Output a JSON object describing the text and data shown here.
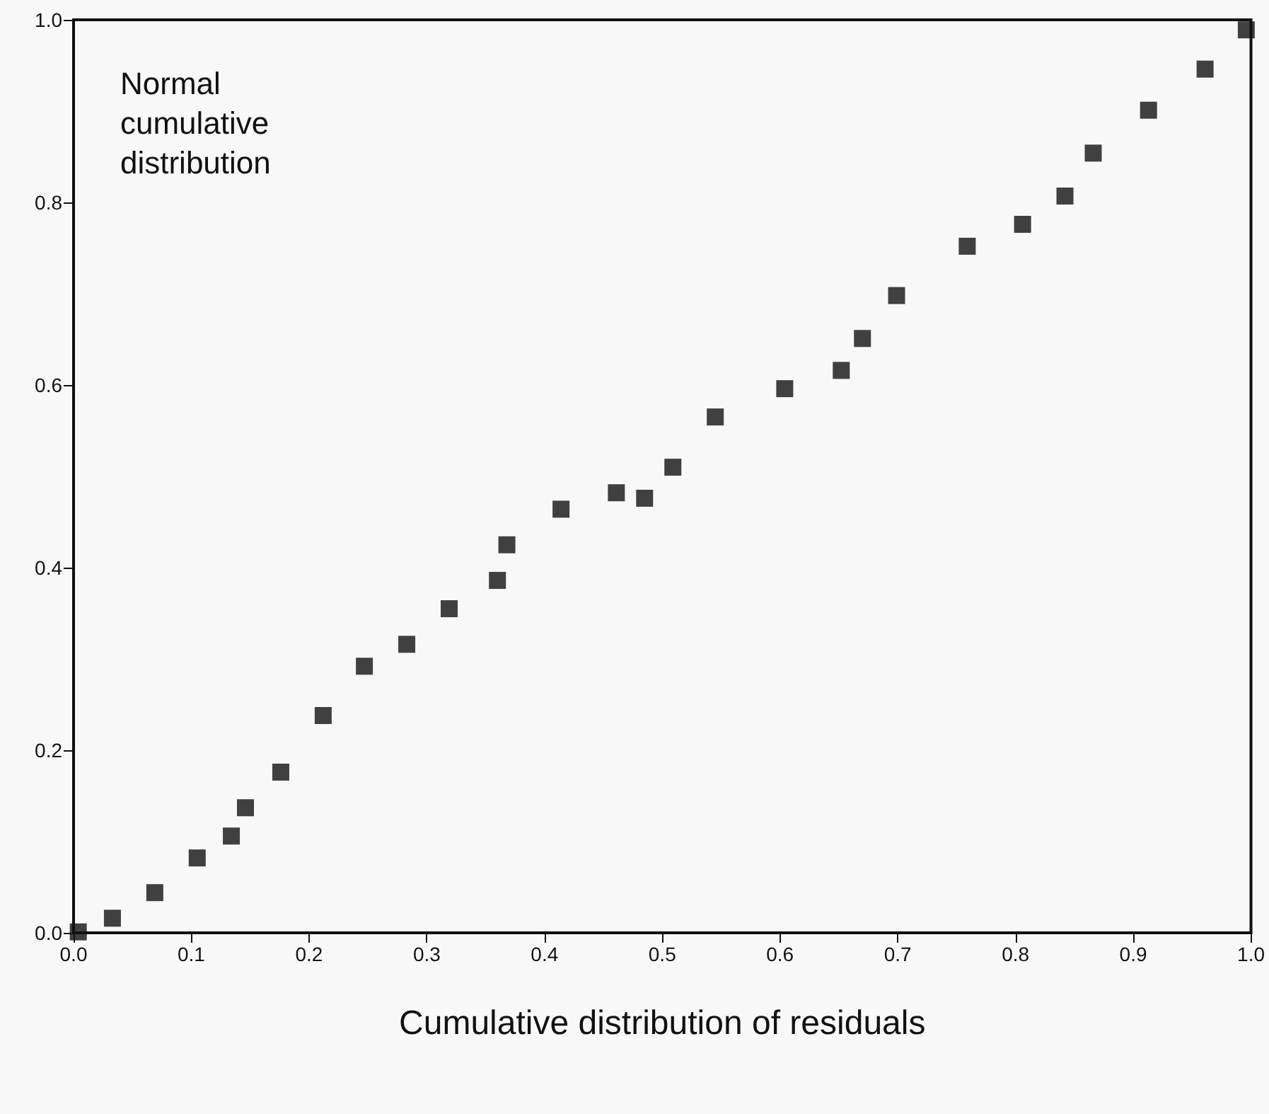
{
  "chart_data": {
    "type": "scatter",
    "xlabel": "Cumulative distribution of residuals",
    "ylabel": "Normal\ncumulative\ndistribution",
    "marker": "square",
    "grid": false,
    "xlim": [
      0,
      1
    ],
    "ylim": [
      0,
      1
    ],
    "xticks": [
      {
        "value": 0,
        "label": "0.0"
      },
      0.1,
      0.2,
      0.3,
      0.4,
      0.5,
      0.6,
      0.7,
      0.8,
      0.9,
      {
        "value": 1,
        "label": "1.0"
      }
    ],
    "yticks": [
      {
        "value": 0,
        "label": "0.0"
      },
      0.2,
      0.4,
      0.6,
      0.8,
      {
        "value": 1,
        "label": "1.0"
      }
    ],
    "series": [
      {
        "color": "#111111",
        "x": [
          0.004,
          0.033,
          0.069,
          0.105,
          0.134,
          0.146,
          0.176,
          0.212,
          0.247,
          0.283,
          0.319,
          0.36,
          0.368,
          0.414,
          0.461,
          0.485,
          0.509,
          0.545,
          0.604,
          0.652,
          0.67,
          0.699,
          0.759,
          0.806,
          0.842,
          0.866,
          0.913,
          0.961,
          0.996
        ],
        "values": [
          0.001,
          0.016,
          0.044,
          0.082,
          0.106,
          0.137,
          0.176,
          0.238,
          0.292,
          0.316,
          0.355,
          0.386,
          0.425,
          0.464,
          0.482,
          0.476,
          0.51,
          0.565,
          0.596,
          0.616,
          0.651,
          0.698,
          0.752,
          0.776,
          0.807,
          0.854,
          0.901,
          0.946,
          0.989
        ]
      }
    ]
  }
}
